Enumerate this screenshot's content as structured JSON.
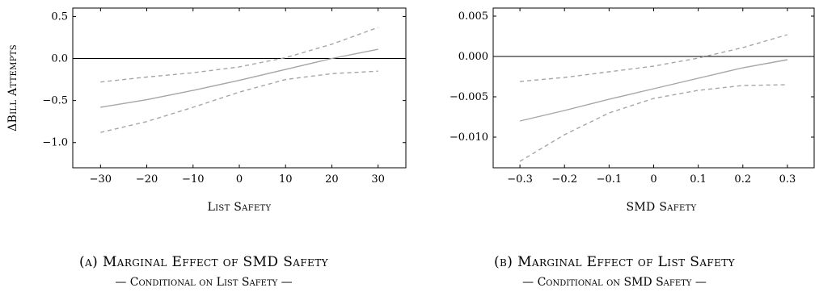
{
  "chart_data": [
    {
      "type": "line",
      "xlabel": "List Safety",
      "ylabel": "ΔBill Attempts",
      "xlim": [
        -36,
        36
      ],
      "ylim": [
        -1.3,
        0.6
      ],
      "xticks": [
        "−30",
        "−20",
        "−10",
        "0",
        "10",
        "20",
        "30"
      ],
      "xtick_values": [
        -30,
        -20,
        -10,
        0,
        10,
        20,
        30
      ],
      "yticks": [
        "0.5",
        "0.0",
        "−0.5",
        "−1.0"
      ],
      "ytick_values": [
        0.5,
        0.0,
        -0.5,
        -1.0
      ],
      "reference_line": 0,
      "series": [
        {
          "style": "solid",
          "color": "#a6a6a6",
          "x": [
            -30,
            -20,
            -10,
            0,
            10,
            20,
            30
          ],
          "y": [
            -0.58,
            -0.49,
            -0.38,
            -0.26,
            -0.13,
            0.0,
            0.11
          ]
        },
        {
          "style": "dashed",
          "color": "#a6a6a6",
          "x": [
            -30,
            -20,
            -10,
            0,
            10,
            20,
            30
          ],
          "y": [
            -0.28,
            -0.22,
            -0.17,
            -0.1,
            0.01,
            0.17,
            0.37
          ]
        },
        {
          "style": "dashed",
          "color": "#a6a6a6",
          "x": [
            -30,
            -20,
            -10,
            0,
            10,
            20,
            30
          ],
          "y": [
            -0.88,
            -0.75,
            -0.58,
            -0.4,
            -0.25,
            -0.18,
            -0.15
          ]
        }
      ],
      "caption": "(a) Marginal Effect of SMD Safety",
      "subcaption": "— Conditional on List Safety —"
    },
    {
      "type": "line",
      "xlabel": "SMD Safety",
      "ylabel": "",
      "xlim": [
        -0.36,
        0.36
      ],
      "ylim": [
        -0.0138,
        0.006
      ],
      "xticks": [
        "−0.3",
        "−0.2",
        "−0.1",
        "0",
        "0.1",
        "0.2",
        "0.3"
      ],
      "xtick_values": [
        -0.3,
        -0.2,
        -0.1,
        0,
        0.1,
        0.2,
        0.3
      ],
      "yticks": [
        "0.005",
        "0.000",
        "−0.005",
        "−0.010"
      ],
      "ytick_values": [
        0.005,
        0.0,
        -0.005,
        -0.01
      ],
      "reference_line": 0,
      "series": [
        {
          "style": "solid",
          "color": "#a6a6a6",
          "x": [
            -0.3,
            -0.2,
            -0.1,
            0,
            0.1,
            0.2,
            0.3
          ],
          "y": [
            -0.008,
            -0.0067,
            -0.0053,
            -0.004,
            -0.0027,
            -0.0014,
            -0.0004
          ]
        },
        {
          "style": "dashed",
          "color": "#a6a6a6",
          "x": [
            -0.3,
            -0.2,
            -0.1,
            0,
            0.1,
            0.2,
            0.3
          ],
          "y": [
            -0.0031,
            -0.0026,
            -0.0019,
            -0.0012,
            -0.0002,
            0.0011,
            0.0027
          ]
        },
        {
          "style": "dashed",
          "color": "#a6a6a6",
          "x": [
            -0.3,
            -0.2,
            -0.1,
            0,
            0.1,
            0.2,
            0.3
          ],
          "y": [
            -0.013,
            -0.0097,
            -0.007,
            -0.0052,
            -0.0042,
            -0.0036,
            -0.0035
          ]
        }
      ],
      "caption": "(b) Marginal Effect of List Safety",
      "subcaption": "— Conditional on SMD Safety —"
    }
  ]
}
